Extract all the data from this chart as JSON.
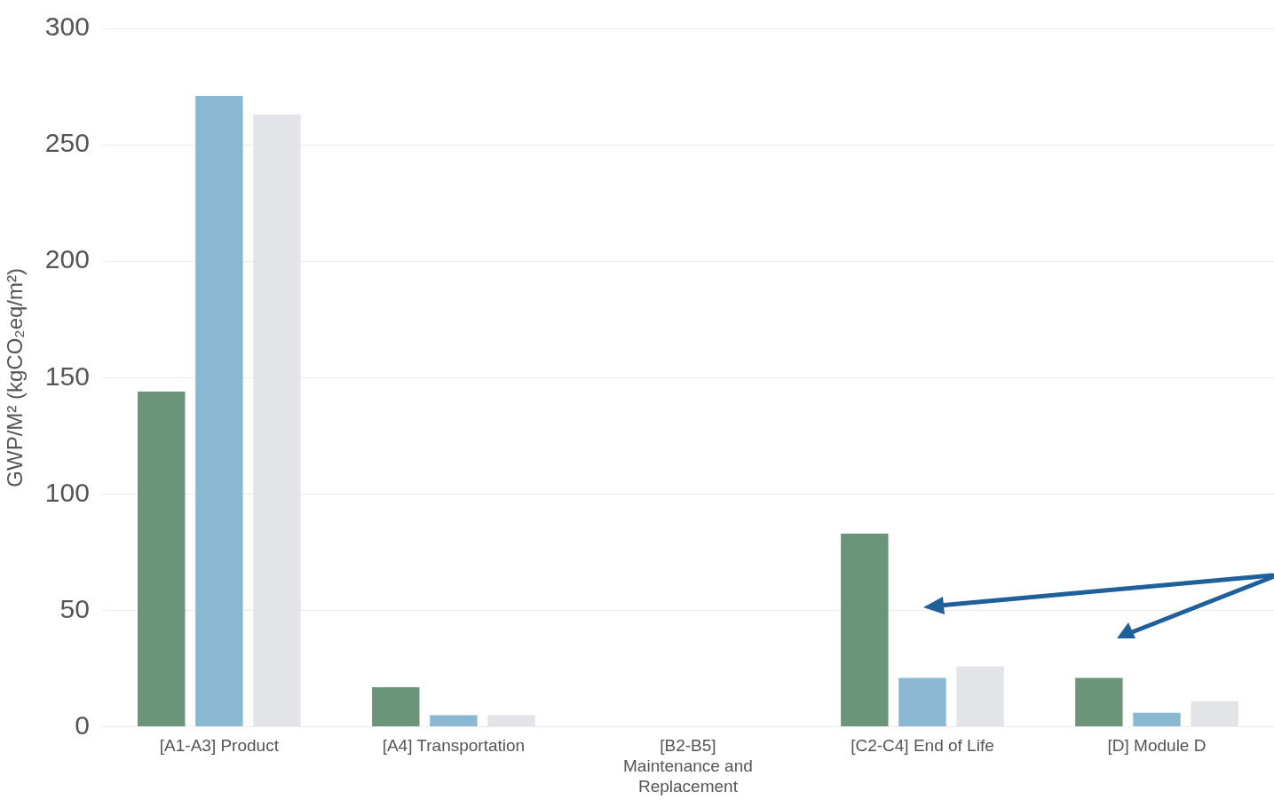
{
  "chart_data": {
    "type": "bar",
    "ylabel": "GWP/M² (kgCO₂eq/m²)",
    "categories": [
      "[A1-A3] Product",
      "[A4] Transportation",
      "[B2-B5]\nMaintenance and\nReplacement",
      "[C2-C4] End of Life",
      "[D] Module D"
    ],
    "series": [
      {
        "color": "#6b9478",
        "values": [
          144,
          17,
          0,
          83,
          21
        ]
      },
      {
        "color": "#8ab7d1",
        "values": [
          271,
          5,
          0,
          21,
          6
        ]
      },
      {
        "color": "#e3e4e8",
        "values": [
          263,
          5,
          0,
          26,
          11
        ]
      }
    ],
    "ylim": [
      0,
      300
    ],
    "yticks": [
      0,
      50,
      100,
      150,
      200,
      250,
      300
    ],
    "grid": "y",
    "legend": false
  }
}
